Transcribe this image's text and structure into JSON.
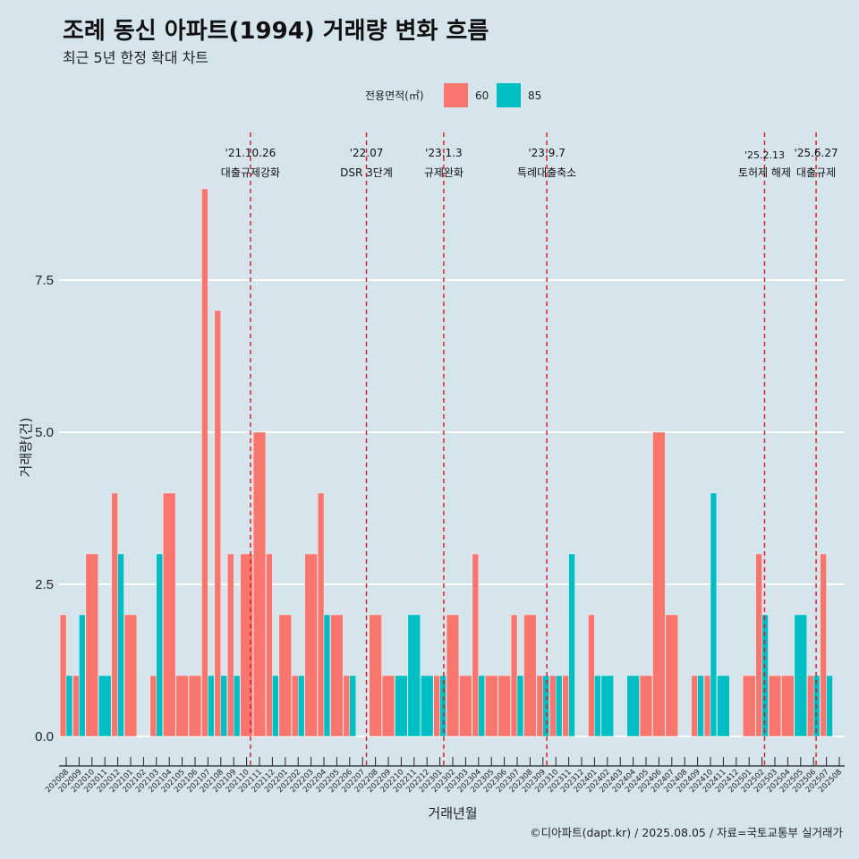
{
  "colors": {
    "s60": "#f8766d",
    "s85": "#00bfc4",
    "background": "#d6e4ec",
    "grid": "#ffffff",
    "event_line": "#e0141c"
  },
  "chart_data": {
    "type": "bar",
    "title": "조례 동신 아파트(1994) 거래량 변화 흐름",
    "subtitle": "최근 5년 한정 확대 차트",
    "xlabel": "거래년월",
    "ylabel": "거래량(건)",
    "ylim": [
      -0.4,
      9.5
    ],
    "yticks": [
      "0.0",
      "2.5",
      "5.0",
      "7.5"
    ],
    "ytick_values": [
      0,
      2.5,
      5,
      7.5
    ],
    "legend": {
      "title": "전용면적(㎡)",
      "labels": [
        "60",
        "85"
      ],
      "position": "top"
    },
    "caption": "©디아파트(dapt.kr) / 2025.08.05 / 자료=국토교통부 실거래가",
    "months": [
      "202008",
      "202009",
      "202010",
      "202011",
      "202012",
      "202101",
      "202102",
      "202103",
      "202104",
      "202105",
      "202106",
      "202107",
      "202108",
      "202109",
      "202110",
      "202111",
      "202112",
      "202201",
      "202202",
      "202203",
      "202204",
      "202205",
      "202206",
      "202207",
      "202208",
      "202209",
      "202210",
      "202211",
      "202212",
      "202301",
      "202302",
      "202303",
      "202304",
      "202305",
      "202306",
      "202307",
      "202308",
      "202309",
      "202310",
      "202311",
      "202312",
      "202401",
      "202402",
      "202403",
      "202404",
      "202405",
      "202406",
      "202407",
      "202408",
      "202409",
      "202410",
      "202411",
      "202412",
      "202501",
      "202502",
      "202503",
      "202504",
      "202505",
      "202506",
      "202507",
      "202508"
    ],
    "series": [
      {
        "name": "60",
        "values": [
          [
            0,
            2
          ],
          [
            1,
            1
          ],
          [
            2,
            3
          ],
          [
            4,
            4
          ],
          [
            5,
            2
          ],
          [
            7,
            1
          ],
          [
            8,
            4
          ],
          [
            9,
            1
          ],
          [
            10,
            1
          ],
          [
            11,
            9
          ],
          [
            12,
            7
          ],
          [
            13,
            3
          ],
          [
            14,
            3
          ],
          [
            15,
            5
          ],
          [
            16,
            3
          ],
          [
            17,
            2
          ],
          [
            18,
            1
          ],
          [
            19,
            3
          ],
          [
            20,
            4
          ],
          [
            21,
            2
          ],
          [
            22,
            1
          ],
          [
            24,
            2
          ],
          [
            25,
            1
          ],
          [
            29,
            1
          ],
          [
            30,
            2
          ],
          [
            31,
            1
          ],
          [
            32,
            3
          ],
          [
            33,
            1
          ],
          [
            34,
            1
          ],
          [
            35,
            2
          ],
          [
            36,
            2
          ],
          [
            37,
            1
          ],
          [
            38,
            1
          ],
          [
            39,
            1
          ],
          [
            41,
            2
          ],
          [
            45,
            1
          ],
          [
            46,
            5
          ],
          [
            47,
            2
          ],
          [
            49,
            1
          ],
          [
            50,
            1
          ],
          [
            53,
            1
          ],
          [
            54,
            3
          ],
          [
            55,
            1
          ],
          [
            56,
            1
          ],
          [
            58,
            1
          ],
          [
            59,
            3
          ]
        ]
      },
      {
        "name": "85",
        "values": [
          [
            0,
            1
          ],
          [
            1,
            2
          ],
          [
            3,
            1
          ],
          [
            4,
            3
          ],
          [
            7,
            3
          ],
          [
            11,
            1
          ],
          [
            12,
            1
          ],
          [
            13,
            1
          ],
          [
            16,
            1
          ],
          [
            18,
            1
          ],
          [
            20,
            2
          ],
          [
            22,
            1
          ],
          [
            26,
            1
          ],
          [
            27,
            2
          ],
          [
            28,
            1
          ],
          [
            29,
            1
          ],
          [
            32,
            1
          ],
          [
            35,
            1
          ],
          [
            37,
            1
          ],
          [
            38,
            1
          ],
          [
            39,
            3
          ],
          [
            41,
            1
          ],
          [
            42,
            1
          ],
          [
            44,
            1
          ],
          [
            49,
            1
          ],
          [
            50,
            4
          ],
          [
            51,
            1
          ],
          [
            54,
            2
          ],
          [
            57,
            2
          ],
          [
            58,
            1
          ],
          [
            59,
            1
          ]
        ]
      }
    ],
    "events": [
      {
        "date": "'21.10.26",
        "label": "대출규제강화",
        "pos": 14.3
      },
      {
        "date": "'22.07",
        "label": "DSR 3단계",
        "pos": 23.3
      },
      {
        "date": "'23.1.3",
        "label": "규제완화",
        "pos": 29.3
      },
      {
        "date": "'23.9.7",
        "label": "특례대출축소",
        "pos": 37.3
      },
      {
        "date": "'25.2.13",
        "label": "토허제 해제",
        "pos": 54.2
      },
      {
        "date": "'25.6.27",
        "label": "대출규제",
        "pos": 58.2
      }
    ]
  }
}
